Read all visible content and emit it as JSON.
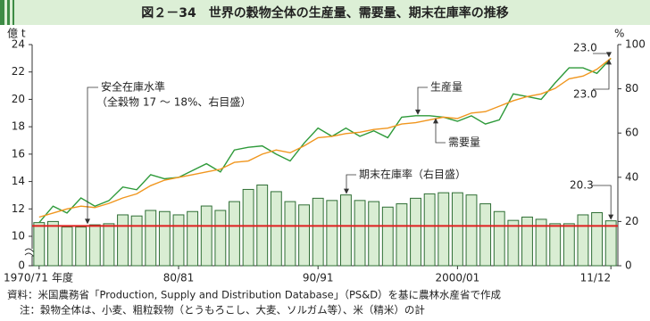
{
  "chart_data": {
    "type": "bar-line",
    "title": "図２－34　世界の穀物全体の生産量、需要量、期末在庫率の推移",
    "y_unit": "億 t",
    "y2_unit": "%",
    "x_suffix": "年度",
    "categories": [
      "1970/71",
      null,
      null,
      null,
      null,
      null,
      null,
      null,
      null,
      null,
      "80/81",
      null,
      null,
      null,
      null,
      null,
      null,
      null,
      null,
      null,
      "90/91",
      null,
      null,
      null,
      null,
      null,
      null,
      null,
      null,
      null,
      "2000/01",
      null,
      null,
      null,
      null,
      null,
      null,
      null,
      null,
      null,
      null,
      "11/12"
    ],
    "ylim": [
      10,
      24
    ],
    "yticks": [
      0,
      10,
      12,
      14,
      16,
      18,
      20,
      22,
      24
    ],
    "axis_break": true,
    "y2lim": [
      0,
      100
    ],
    "y2ticks": [
      0,
      20,
      40,
      60,
      80,
      100
    ],
    "series": [
      {
        "name": "期末在庫率（右目盛）",
        "type": "bar",
        "axis": "y2",
        "color": "#d9edd3",
        "stroke": "#2f6e35",
        "values": [
          19.5,
          20,
          17.5,
          17.5,
          18.5,
          19,
          23,
          22.5,
          25,
          24.5,
          23,
          24.5,
          27,
          25,
          29,
          34.5,
          36.5,
          33.5,
          29,
          27.5,
          30.5,
          29.5,
          32,
          29.5,
          29,
          26.5,
          28,
          30.5,
          32.5,
          33,
          33,
          32,
          28,
          24.5,
          20.5,
          22,
          21,
          19,
          19,
          23,
          24,
          20.3
        ]
      },
      {
        "name": "生産量",
        "type": "line",
        "color": "#2e9a3a",
        "values": [
          11.0,
          12.2,
          11.7,
          12.8,
          12.2,
          12.6,
          13.6,
          13.4,
          14.5,
          14.2,
          14.3,
          14.8,
          15.3,
          14.7,
          16.3,
          16.5,
          16.6,
          16.0,
          15.5,
          16.8,
          17.9,
          17.3,
          17.9,
          17.3,
          17.7,
          17.2,
          18.7,
          18.8,
          18.8,
          18.7,
          18.4,
          18.8,
          18.2,
          18.5,
          20.4,
          20.2,
          20.0,
          21.2,
          22.3,
          22.3,
          21.9,
          23.0
        ],
        "value_labels": [
          null,
          null,
          null,
          null,
          null,
          null,
          null,
          null,
          null,
          null,
          null,
          null,
          null,
          null,
          null,
          null,
          null,
          null,
          null,
          null,
          null,
          null,
          null,
          null,
          null,
          null,
          null,
          null,
          null,
          null,
          null,
          null,
          null,
          null,
          null,
          null,
          null,
          null,
          null,
          null,
          null,
          "23.0"
        ]
      },
      {
        "name": "需要量",
        "type": "line",
        "color": "#f0961e",
        "values": [
          11.4,
          11.7,
          12.0,
          12.2,
          12.1,
          12.4,
          12.8,
          13.1,
          13.7,
          14.1,
          14.3,
          14.5,
          14.7,
          14.9,
          15.4,
          15.5,
          16.0,
          16.3,
          16.1,
          16.6,
          17.2,
          17.3,
          17.5,
          17.6,
          17.8,
          17.9,
          18.2,
          18.3,
          18.5,
          18.7,
          18.6,
          19.0,
          19.1,
          19.5,
          19.9,
          20.2,
          20.4,
          20.8,
          21.5,
          21.7,
          22.2,
          23.0
        ],
        "value_labels": [
          null,
          null,
          null,
          null,
          null,
          null,
          null,
          null,
          null,
          null,
          null,
          null,
          null,
          null,
          null,
          null,
          null,
          null,
          null,
          null,
          null,
          null,
          null,
          null,
          null,
          null,
          null,
          null,
          null,
          null,
          null,
          null,
          null,
          null,
          null,
          null,
          null,
          null,
          null,
          null,
          null,
          "23.0"
        ]
      }
    ],
    "reference_line": {
      "name": "安全在庫水準",
      "note": "（全穀物 17 ～ 18%、右目盛）",
      "value": 18,
      "axis": "y2",
      "color": "#e02020"
    },
    "source": "資料：米国農務省「Production, Supply and Distribution Database」（PS&D）を基に農林水産省で作成",
    "footnote": "注：穀物全体は、小麦、粗粒穀物（とうもろこし、大麦、ソルガム等）、米（精米）の計"
  }
}
